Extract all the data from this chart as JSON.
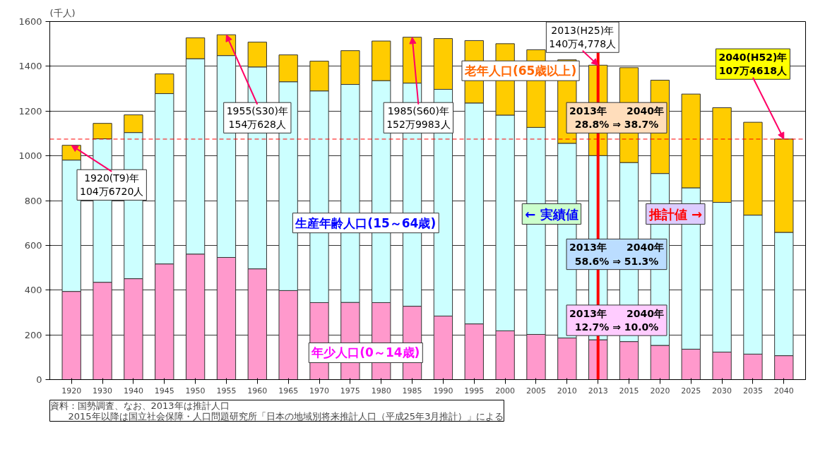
{
  "chart_data": {
    "type": "bar",
    "stacked": true,
    "ylabel": "(千人)",
    "categories": [
      "1920",
      "1930",
      "1940",
      "1945",
      "1950",
      "1955",
      "1960",
      "1965",
      "1970",
      "1975",
      "1980",
      "1985",
      "1990",
      "1995",
      "2000",
      "2005",
      "2010",
      "2013",
      "2015",
      "2020",
      "2025",
      "2030",
      "2035",
      "2040"
    ],
    "series": [
      {
        "name": "年少人口(0～14歳)",
        "color": "#ff99cc",
        "values": [
          394,
          435,
          451,
          517,
          561,
          546,
          495,
          398,
          344,
          345,
          344,
          328,
          284,
          249,
          218,
          202,
          186,
          178,
          170,
          153,
          136,
          123,
          114,
          107
        ]
      },
      {
        "name": "生産年齢人口(15～64歳)",
        "color": "#ccffff",
        "values": [
          587,
          641,
          653,
          761,
          873,
          902,
          902,
          933,
          946,
          974,
          992,
          997,
          1013,
          987,
          964,
          925,
          870,
          823,
          800,
          768,
          721,
          669,
          621,
          551
        ]
      },
      {
        "name": "老年人口(65歳以上)",
        "color": "#ffcc00",
        "values": [
          66,
          69,
          79,
          88,
          93,
          93,
          111,
          120,
          133,
          151,
          177,
          205,
          227,
          279,
          319,
          347,
          373,
          404,
          424,
          417,
          419,
          423,
          415,
          417
        ]
      }
    ],
    "ylim": [
      0,
      1600
    ],
    "yticks": [
      0,
      200,
      400,
      600,
      800,
      1000,
      1200,
      1400,
      1600
    ],
    "grid": "y",
    "ref_lines": [
      {
        "axis": "y",
        "value": 1074.618,
        "color": "#ff0000",
        "line_style": "dashed"
      },
      {
        "axis": "x",
        "value": "2013",
        "color": "#ff0000",
        "line_style": "solid"
      }
    ],
    "annotations": [
      {
        "text": "1920(T9)年\n104万6720人",
        "x": "1920",
        "y": 1046.72
      },
      {
        "text": "1955(S30)年\n154万628人",
        "x": "1955",
        "y": 1540.628
      },
      {
        "text": "1985(S60)年\n152万9983人",
        "x": "1985",
        "y": 1529.983
      },
      {
        "text": "2013(H25)年\n140万4,778人",
        "x": "2013",
        "y": 1404.778
      },
      {
        "text": "2040(H52)年\n107万4618人",
        "x": "2040",
        "y": 1074.618
      },
      "2013年　　2040年\n28.8% ⇒ 38.7%",
      "2013年　　2040年\n58.6% ⇒ 51.3%",
      "2013年　　2040年\n12.7% ⇒ 10.0%",
      "← 実績値",
      "推計値 →",
      "資料：国勢調査、なお、2013年は推計人口\n　　2015年以降は国立社会保障・人口問題研究所「日本の地域別将来推計人口（平成25年3月推計）」による"
    ]
  }
}
